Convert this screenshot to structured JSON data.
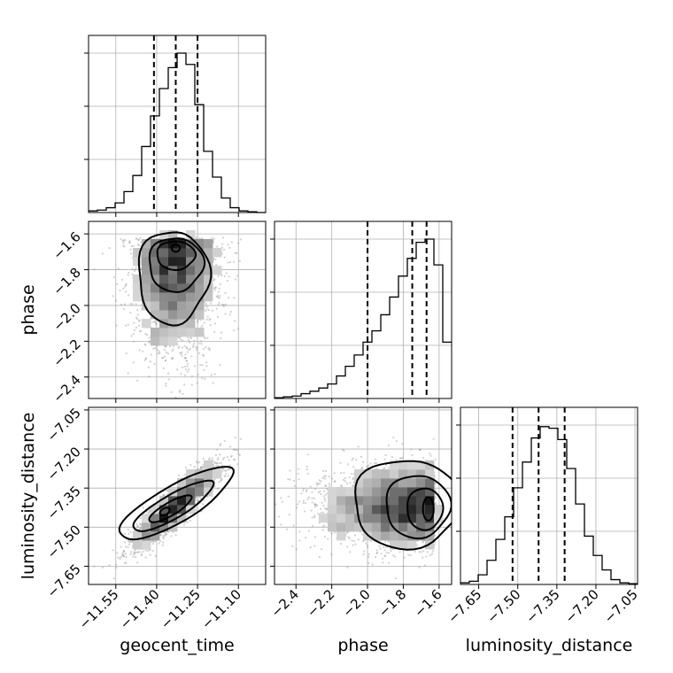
{
  "chart_data": {
    "type": "corner",
    "parameters": [
      "geocent_time",
      "phase",
      "luminosity_distance"
    ],
    "ranges": {
      "geocent_time": [
        -11.65,
        -11.0
      ],
      "phase": [
        -2.52,
        -1.53
      ],
      "luminosity_distance": [
        -7.72,
        -7.04
      ]
    },
    "ticks": {
      "geocent_time": [
        -11.55,
        -11.4,
        -11.25,
        -11.1
      ],
      "phase": [
        -2.4,
        -2.2,
        -2.0,
        -1.8,
        -1.6
      ],
      "luminosity_distance": [
        -7.65,
        -7.5,
        -7.35,
        -7.2,
        -7.05
      ]
    },
    "tick_labels": {
      "geocent_time": [
        "−11.55",
        "−11.40",
        "−11.25",
        "−11.10"
      ],
      "phase": [
        "−2.4",
        "−2.2",
        "−2.0",
        "−1.8",
        "−1.6"
      ],
      "luminosity_distance": [
        "−7.65",
        "−7.50",
        "−7.35",
        "−7.20",
        "−7.05"
      ]
    },
    "quantiles": {
      "geocent_time": [
        -11.41,
        -11.33,
        -11.25
      ],
      "phase": [
        -2.0,
        -1.75,
        -1.67
      ],
      "luminosity_distance": [
        -7.52,
        -7.42,
        -7.32
      ]
    },
    "histograms": {
      "geocent_time": [
        0.01,
        0.015,
        0.03,
        0.06,
        0.13,
        0.23,
        0.41,
        0.6,
        0.77,
        0.9,
        0.99,
        0.92,
        0.67,
        0.38,
        0.22,
        0.09,
        0.03,
        0.01,
        0.005,
        0
      ],
      "phase": [
        0.005,
        0.01,
        0.015,
        0.03,
        0.045,
        0.065,
        0.09,
        0.14,
        0.2,
        0.27,
        0.35,
        0.42,
        0.52,
        0.63,
        0.76,
        0.87,
        0.97,
        0.99,
        0.83,
        0.35
      ],
      "luminosity_distance": [
        0.01,
        0.02,
        0.06,
        0.15,
        0.28,
        0.42,
        0.6,
        0.76,
        0.91,
        0.98,
        0.97,
        0.9,
        0.72,
        0.5,
        0.3,
        0.18,
        0.09,
        0.03,
        0.01,
        0.005
      ]
    },
    "grid": true
  }
}
